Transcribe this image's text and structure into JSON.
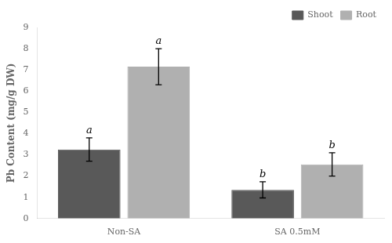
{
  "chart_data": {
    "type": "bar",
    "categories": [
      "Non-SA",
      "SA 0.5mM"
    ],
    "series": [
      {
        "name": "Shoot",
        "color": "#595959",
        "values": [
          3.25,
          1.35
        ],
        "errors": [
          0.55,
          0.38
        ],
        "letters": [
          "a",
          "b"
        ]
      },
      {
        "name": "Root",
        "color": "#b0b0b0",
        "values": [
          7.15,
          2.55
        ],
        "errors": [
          0.85,
          0.55
        ],
        "letters": [
          "a",
          "b"
        ]
      }
    ],
    "ylabel": "Pb Content (mg/g DW)",
    "ylim": [
      0,
      9
    ],
    "yticks": [
      0,
      1,
      2,
      3,
      4,
      5,
      6,
      7,
      8,
      9
    ],
    "grid": false,
    "legend": "upper right"
  }
}
